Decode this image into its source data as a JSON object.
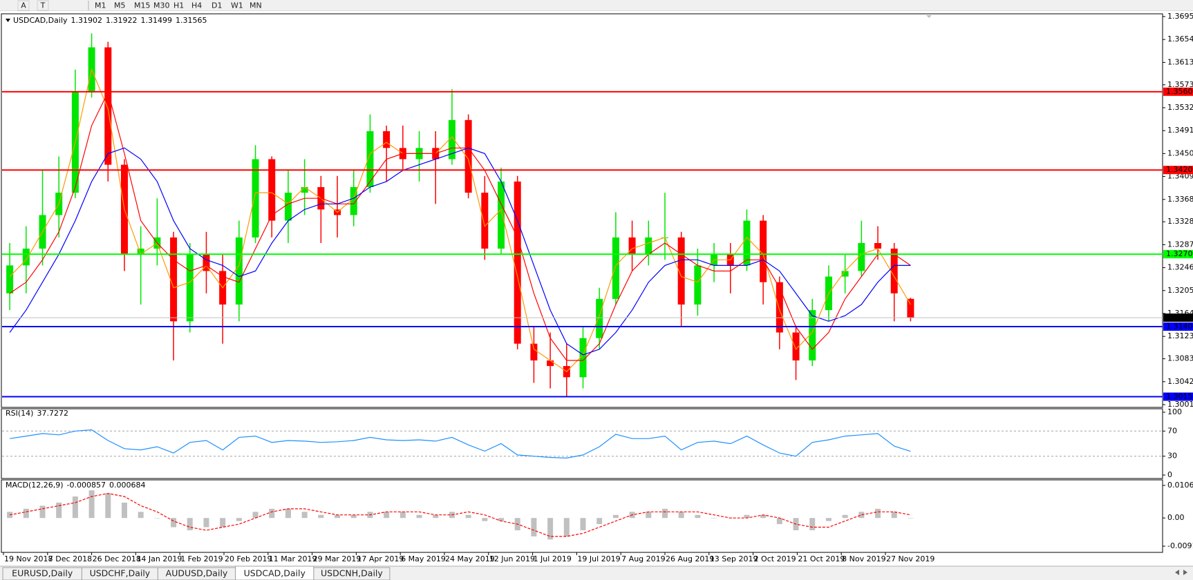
{
  "toolbar": {
    "tools": [
      "A",
      "T"
    ],
    "timeframes": [
      "M1",
      "M5",
      "M15",
      "M30",
      "H1",
      "H4",
      "D1",
      "W1",
      "MN"
    ]
  },
  "chart_data": [
    {
      "type": "candlestick",
      "title": "USDCAD,Daily",
      "quote": [
        1.31902,
        1.31922,
        1.31499,
        1.31565
      ],
      "up_color": "#00e600",
      "down_color": "#ff0000",
      "x_labels": [
        "19 Nov 2018",
        "7 Dec 2018",
        "26 Dec 2018",
        "14 Jan 2019",
        "1 Feb 2019",
        "20 Feb 2019",
        "11 Mar 2019",
        "29 Mar 2019",
        "17 Apr 2019",
        "6 May 2019",
        "24 May 2019",
        "12 Jun 2019",
        "1 Jul 2019",
        "19 Jul 2019",
        "7 Aug 2019",
        "26 Aug 2019",
        "13 Sep 2019",
        "2 Oct 2019",
        "21 Oct 2019",
        "8 Nov 2019",
        "27 Nov 2019"
      ],
      "candles": [
        [
          1.32,
          1.329,
          1.317,
          1.325
        ],
        [
          1.325,
          1.332,
          1.32,
          1.328
        ],
        [
          1.328,
          1.342,
          1.325,
          1.334
        ],
        [
          1.334,
          1.3445,
          1.33,
          1.338
        ],
        [
          1.338,
          1.36,
          1.337,
          1.356
        ],
        [
          1.356,
          1.3665,
          1.355,
          1.364
        ],
        [
          1.364,
          1.365,
          1.34,
          1.343
        ],
        [
          1.343,
          1.344,
          1.324,
          1.327
        ],
        [
          1.327,
          1.332,
          1.318,
          1.328
        ],
        [
          1.328,
          1.337,
          1.325,
          1.33
        ],
        [
          1.33,
          1.331,
          1.308,
          1.315
        ],
        [
          1.315,
          1.329,
          1.313,
          1.327
        ],
        [
          1.327,
          1.331,
          1.32,
          1.324
        ],
        [
          1.324,
          1.327,
          1.311,
          1.318
        ],
        [
          1.318,
          1.333,
          1.315,
          1.33
        ],
        [
          1.33,
          1.3465,
          1.329,
          1.344
        ],
        [
          1.344,
          1.3445,
          1.33,
          1.333
        ],
        [
          1.333,
          1.342,
          1.329,
          1.338
        ],
        [
          1.338,
          1.344,
          1.334,
          1.339
        ],
        [
          1.339,
          1.341,
          1.329,
          1.335
        ],
        [
          1.335,
          1.341,
          1.33,
          1.334
        ],
        [
          1.334,
          1.342,
          1.332,
          1.339
        ],
        [
          1.339,
          1.352,
          1.338,
          1.349
        ],
        [
          1.349,
          1.35,
          1.34,
          1.346
        ],
        [
          1.346,
          1.35,
          1.342,
          1.344
        ],
        [
          1.344,
          1.349,
          1.34,
          1.346
        ],
        [
          1.346,
          1.349,
          1.336,
          1.344
        ],
        [
          1.344,
          1.3565,
          1.343,
          1.351
        ],
        [
          1.351,
          1.352,
          1.337,
          1.338
        ],
        [
          1.338,
          1.341,
          1.326,
          1.328
        ],
        [
          1.328,
          1.3425,
          1.327,
          1.34
        ],
        [
          1.34,
          1.341,
          1.31,
          1.311
        ],
        [
          1.311,
          1.314,
          1.304,
          1.308
        ],
        [
          1.308,
          1.313,
          1.303,
          1.307
        ],
        [
          1.307,
          1.311,
          1.3016,
          1.305
        ],
        [
          1.305,
          1.314,
          1.303,
          1.312
        ],
        [
          1.312,
          1.321,
          1.31,
          1.319
        ],
        [
          1.319,
          1.3345,
          1.318,
          1.33
        ],
        [
          1.33,
          1.333,
          1.324,
          1.327
        ],
        [
          1.327,
          1.333,
          1.325,
          1.33
        ],
        [
          1.33,
          1.338,
          1.326,
          1.33
        ],
        [
          1.33,
          1.331,
          1.314,
          1.318
        ],
        [
          1.318,
          1.328,
          1.316,
          1.325
        ],
        [
          1.325,
          1.329,
          1.322,
          1.327
        ],
        [
          1.327,
          1.329,
          1.32,
          1.325
        ],
        [
          1.325,
          1.335,
          1.324,
          1.333
        ],
        [
          1.333,
          1.334,
          1.318,
          1.322
        ],
        [
          1.322,
          1.323,
          1.31,
          1.313
        ],
        [
          1.313,
          1.314,
          1.3045,
          1.308
        ],
        [
          1.308,
          1.319,
          1.307,
          1.317
        ],
        [
          1.317,
          1.325,
          1.315,
          1.323
        ],
        [
          1.323,
          1.327,
          1.32,
          1.324
        ],
        [
          1.324,
          1.333,
          1.323,
          1.329
        ],
        [
          1.329,
          1.332,
          1.326,
          1.328
        ],
        [
          1.328,
          1.329,
          1.315,
          1.32
        ],
        [
          1.31902,
          1.31922,
          1.31499,
          1.31565
        ]
      ],
      "lines": [
        {
          "color": "#ff9900",
          "values": [
            1.323,
            1.326,
            1.331,
            1.336,
            1.347,
            1.36,
            1.353,
            1.335,
            1.327,
            1.329,
            1.321,
            1.322,
            1.325,
            1.321,
            1.325,
            1.338,
            1.338,
            1.336,
            1.339,
            1.337,
            1.3345,
            1.337,
            1.345,
            1.347,
            1.345,
            1.345,
            1.345,
            1.348,
            1.344,
            1.332,
            1.335,
            1.323,
            1.31,
            1.308,
            1.306,
            1.309,
            1.316,
            1.325,
            1.328,
            1.329,
            1.33,
            1.323,
            1.322,
            1.326,
            1.326,
            1.33,
            1.327,
            1.317,
            1.31,
            1.313,
            1.32,
            1.324,
            1.327,
            1.328,
            1.323,
            1.318
          ]
        },
        {
          "color": "#ff0000",
          "values": [
            1.32,
            1.322,
            1.326,
            1.331,
            1.339,
            1.35,
            1.356,
            1.345,
            1.333,
            1.329,
            1.326,
            1.324,
            1.325,
            1.323,
            1.322,
            1.328,
            1.334,
            1.336,
            1.337,
            1.337,
            1.336,
            1.336,
            1.34,
            1.344,
            1.345,
            1.345,
            1.345,
            1.346,
            1.346,
            1.342,
            1.336,
            1.33,
            1.32,
            1.312,
            1.308,
            1.308,
            1.311,
            1.318,
            1.324,
            1.327,
            1.329,
            1.327,
            1.325,
            1.324,
            1.324,
            1.326,
            1.326,
            1.321,
            1.314,
            1.31,
            1.313,
            1.319,
            1.323,
            1.327,
            1.327,
            1.325
          ]
        },
        {
          "color": "#0000ff",
          "values": [
            1.313,
            1.317,
            1.322,
            1.327,
            1.333,
            1.34,
            1.345,
            1.346,
            1.344,
            1.34,
            1.333,
            1.328,
            1.326,
            1.325,
            1.323,
            1.324,
            1.329,
            1.333,
            1.335,
            1.336,
            1.336,
            1.337,
            1.339,
            1.34,
            1.342,
            1.343,
            1.344,
            1.345,
            1.346,
            1.345,
            1.34,
            1.333,
            1.325,
            1.317,
            1.311,
            1.309,
            1.31,
            1.313,
            1.317,
            1.322,
            1.325,
            1.326,
            1.326,
            1.325,
            1.325,
            1.325,
            1.326,
            1.324,
            1.32,
            1.316,
            1.315,
            1.316,
            1.318,
            1.322,
            1.325,
            1.325
          ]
        }
      ],
      "levels": [
        {
          "value": 1.35606,
          "color": "#ff0000"
        },
        {
          "value": 1.34206,
          "color": "#ff0000"
        },
        {
          "value": 1.327,
          "label": "1.32700",
          "color": "#00ff00"
        },
        {
          "value": 1.31405,
          "color": "#0000ff"
        },
        {
          "value": 1.30152,
          "color": "#0000ff"
        }
      ],
      "ylim": [
        1.3001,
        1.3695
      ],
      "yticks": [
        {
          "value": 1.3695,
          "label": "1.36950"
        },
        {
          "value": 1.3654,
          "label": "1.36540"
        },
        {
          "value": 1.3613,
          "label": "1.36130"
        },
        {
          "value": 1.3573,
          "label": "1.35730"
        },
        {
          "value": 1.3532,
          "label": "1.35320"
        },
        {
          "value": 1.3491,
          "label": "1.34910"
        },
        {
          "value": 1.345,
          "label": "1.34500"
        },
        {
          "value": 1.3409,
          "label": "1.34090"
        },
        {
          "value": 1.3368,
          "label": "1.33680"
        },
        {
          "value": 1.3328,
          "label": "1.33280"
        },
        {
          "value": 1.3287,
          "label": "1.32870"
        },
        {
          "value": 1.3246,
          "label": "1.32460"
        },
        {
          "value": 1.3205,
          "label": "1.32050"
        },
        {
          "value": 1.3164,
          "label": "1.31640"
        },
        {
          "value": 1.3123,
          "label": "1.31230"
        },
        {
          "value": 1.3083,
          "label": "1.30830"
        },
        {
          "value": 1.3042,
          "label": "1.30420"
        },
        {
          "value": 1.3001,
          "label": "1.30010"
        }
      ]
    },
    {
      "type": "line",
      "title": "RSI(14)",
      "last": 37.7272,
      "color": "#1e90ff",
      "values": [
        58,
        62,
        66,
        64,
        70,
        72,
        55,
        42,
        40,
        45,
        35,
        52,
        55,
        40,
        60,
        62,
        52,
        55,
        54,
        52,
        53,
        55,
        60,
        56,
        55,
        56,
        54,
        60,
        48,
        38,
        50,
        32,
        30,
        28,
        27,
        32,
        45,
        65,
        58,
        58,
        62,
        40,
        52,
        54,
        50,
        62,
        48,
        35,
        30,
        52,
        56,
        62,
        64,
        66,
        46,
        37.7
      ],
      "levels": [
        70,
        30
      ],
      "ylim": [
        0,
        100
      ],
      "yticks": [
        100,
        70,
        30,
        0
      ]
    },
    {
      "type": "bar",
      "title": "MACD(12,26,9)",
      "last": [
        -0.000857,
        0.000684
      ],
      "color": "#c0c0c0",
      "values": [
        0.002,
        0.003,
        0.004,
        0.005,
        0.007,
        0.009,
        0.008,
        0.005,
        0.002,
        0,
        -0.003,
        -0.004,
        -0.003,
        -0.003,
        -0.001,
        0.002,
        0.003,
        0.003,
        0.002,
        0.001,
        0.001,
        0.001,
        0.002,
        0.002,
        0.002,
        0.001,
        0.001,
        0.002,
        0.001,
        -0.001,
        -0.001,
        -0.004,
        -0.006,
        -0.007,
        -0.006,
        -0.004,
        -0.002,
        0.001,
        0.002,
        0.002,
        0.003,
        0.002,
        0.001,
        0,
        0,
        0.001,
        0.001,
        -0.002,
        -0.004,
        -0.004,
        -0.001,
        0.001,
        0.002,
        0.003,
        0.002,
        0
      ],
      "signal": {
        "color": "#ff0000",
        "values": [
          0.001,
          0.002,
          0.003,
          0.004,
          0.005,
          0.007,
          0.008,
          0.007,
          0.004,
          0.002,
          -0.001,
          -0.003,
          -0.004,
          -0.003,
          -0.002,
          0,
          0.002,
          0.003,
          0.003,
          0.002,
          0.001,
          0.001,
          0.001,
          0.002,
          0.002,
          0.002,
          0.001,
          0.001,
          0.002,
          0.001,
          -0.001,
          -0.002,
          -0.004,
          -0.006,
          -0.006,
          -0.005,
          -0.003,
          -0.001,
          0.001,
          0.002,
          0.002,
          0.002,
          0.002,
          0.001,
          0,
          0,
          0.001,
          0,
          -0.002,
          -0.003,
          -0.003,
          -0.001,
          0.001,
          0.002,
          0.002,
          0.001
        ]
      },
      "ylim": [
        -0.00918,
        0.010615
      ],
      "yticks": [
        0.010615,
        {
          "value": 0,
          "label": "0.00"
        },
        -0.00918
      ]
    }
  ],
  "tabs": [
    "EURUSD,Daily",
    "USDCHF,Daily",
    "AUDUSD,Daily",
    "USDCAD,Daily",
    "USDCNH,Daily"
  ],
  "active_tab": 3
}
